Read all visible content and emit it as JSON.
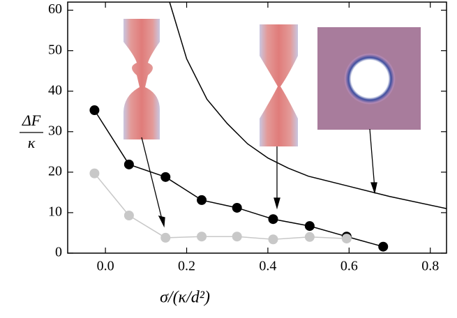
{
  "chart_data": {
    "type": "line",
    "x_label": "σ/(κ/d²)",
    "y_label": {
      "numerator": "ΔF",
      "denominator": "κ"
    },
    "xlim": [
      -0.093,
      0.84
    ],
    "ylim": [
      0,
      62
    ],
    "xticks": [
      {
        "value": 0,
        "label": "0.0"
      },
      {
        "value": 0.2,
        "label": "0.2"
      },
      {
        "value": 0.4,
        "label": "0.4"
      },
      {
        "value": 0.6,
        "label": "0.6"
      },
      {
        "value": 0.8,
        "label": "0.8"
      }
    ],
    "yticks": [
      0,
      10,
      20,
      30,
      40,
      50,
      60
    ],
    "series": [
      {
        "color": "#000000",
        "marker": true,
        "x": [
          -0.027,
          0.058,
          0.148,
          0.237,
          0.324,
          0.413,
          0.503,
          0.594,
          0.684
        ],
        "values": [
          35.3,
          21.9,
          18.8,
          13.1,
          11.2,
          8.4,
          6.7,
          4.1,
          1.6
        ]
      },
      {
        "color": "#c8c8c8",
        "marker": true,
        "x": [
          -0.027,
          0.058,
          0.148,
          0.237,
          0.324,
          0.413,
          0.503,
          0.594
        ],
        "values": [
          19.7,
          9.3,
          3.8,
          4.1,
          4.1,
          3.4,
          4.0,
          3.6
        ]
      },
      {
        "color": "#000000",
        "marker": false,
        "x": [
          0.158,
          0.2,
          0.25,
          0.3,
          0.35,
          0.4,
          0.45,
          0.5,
          0.6,
          0.7,
          0.84
        ],
        "values": [
          62,
          48,
          38,
          32,
          27,
          23.5,
          21,
          19,
          16.5,
          14,
          11
        ]
      }
    ]
  }
}
